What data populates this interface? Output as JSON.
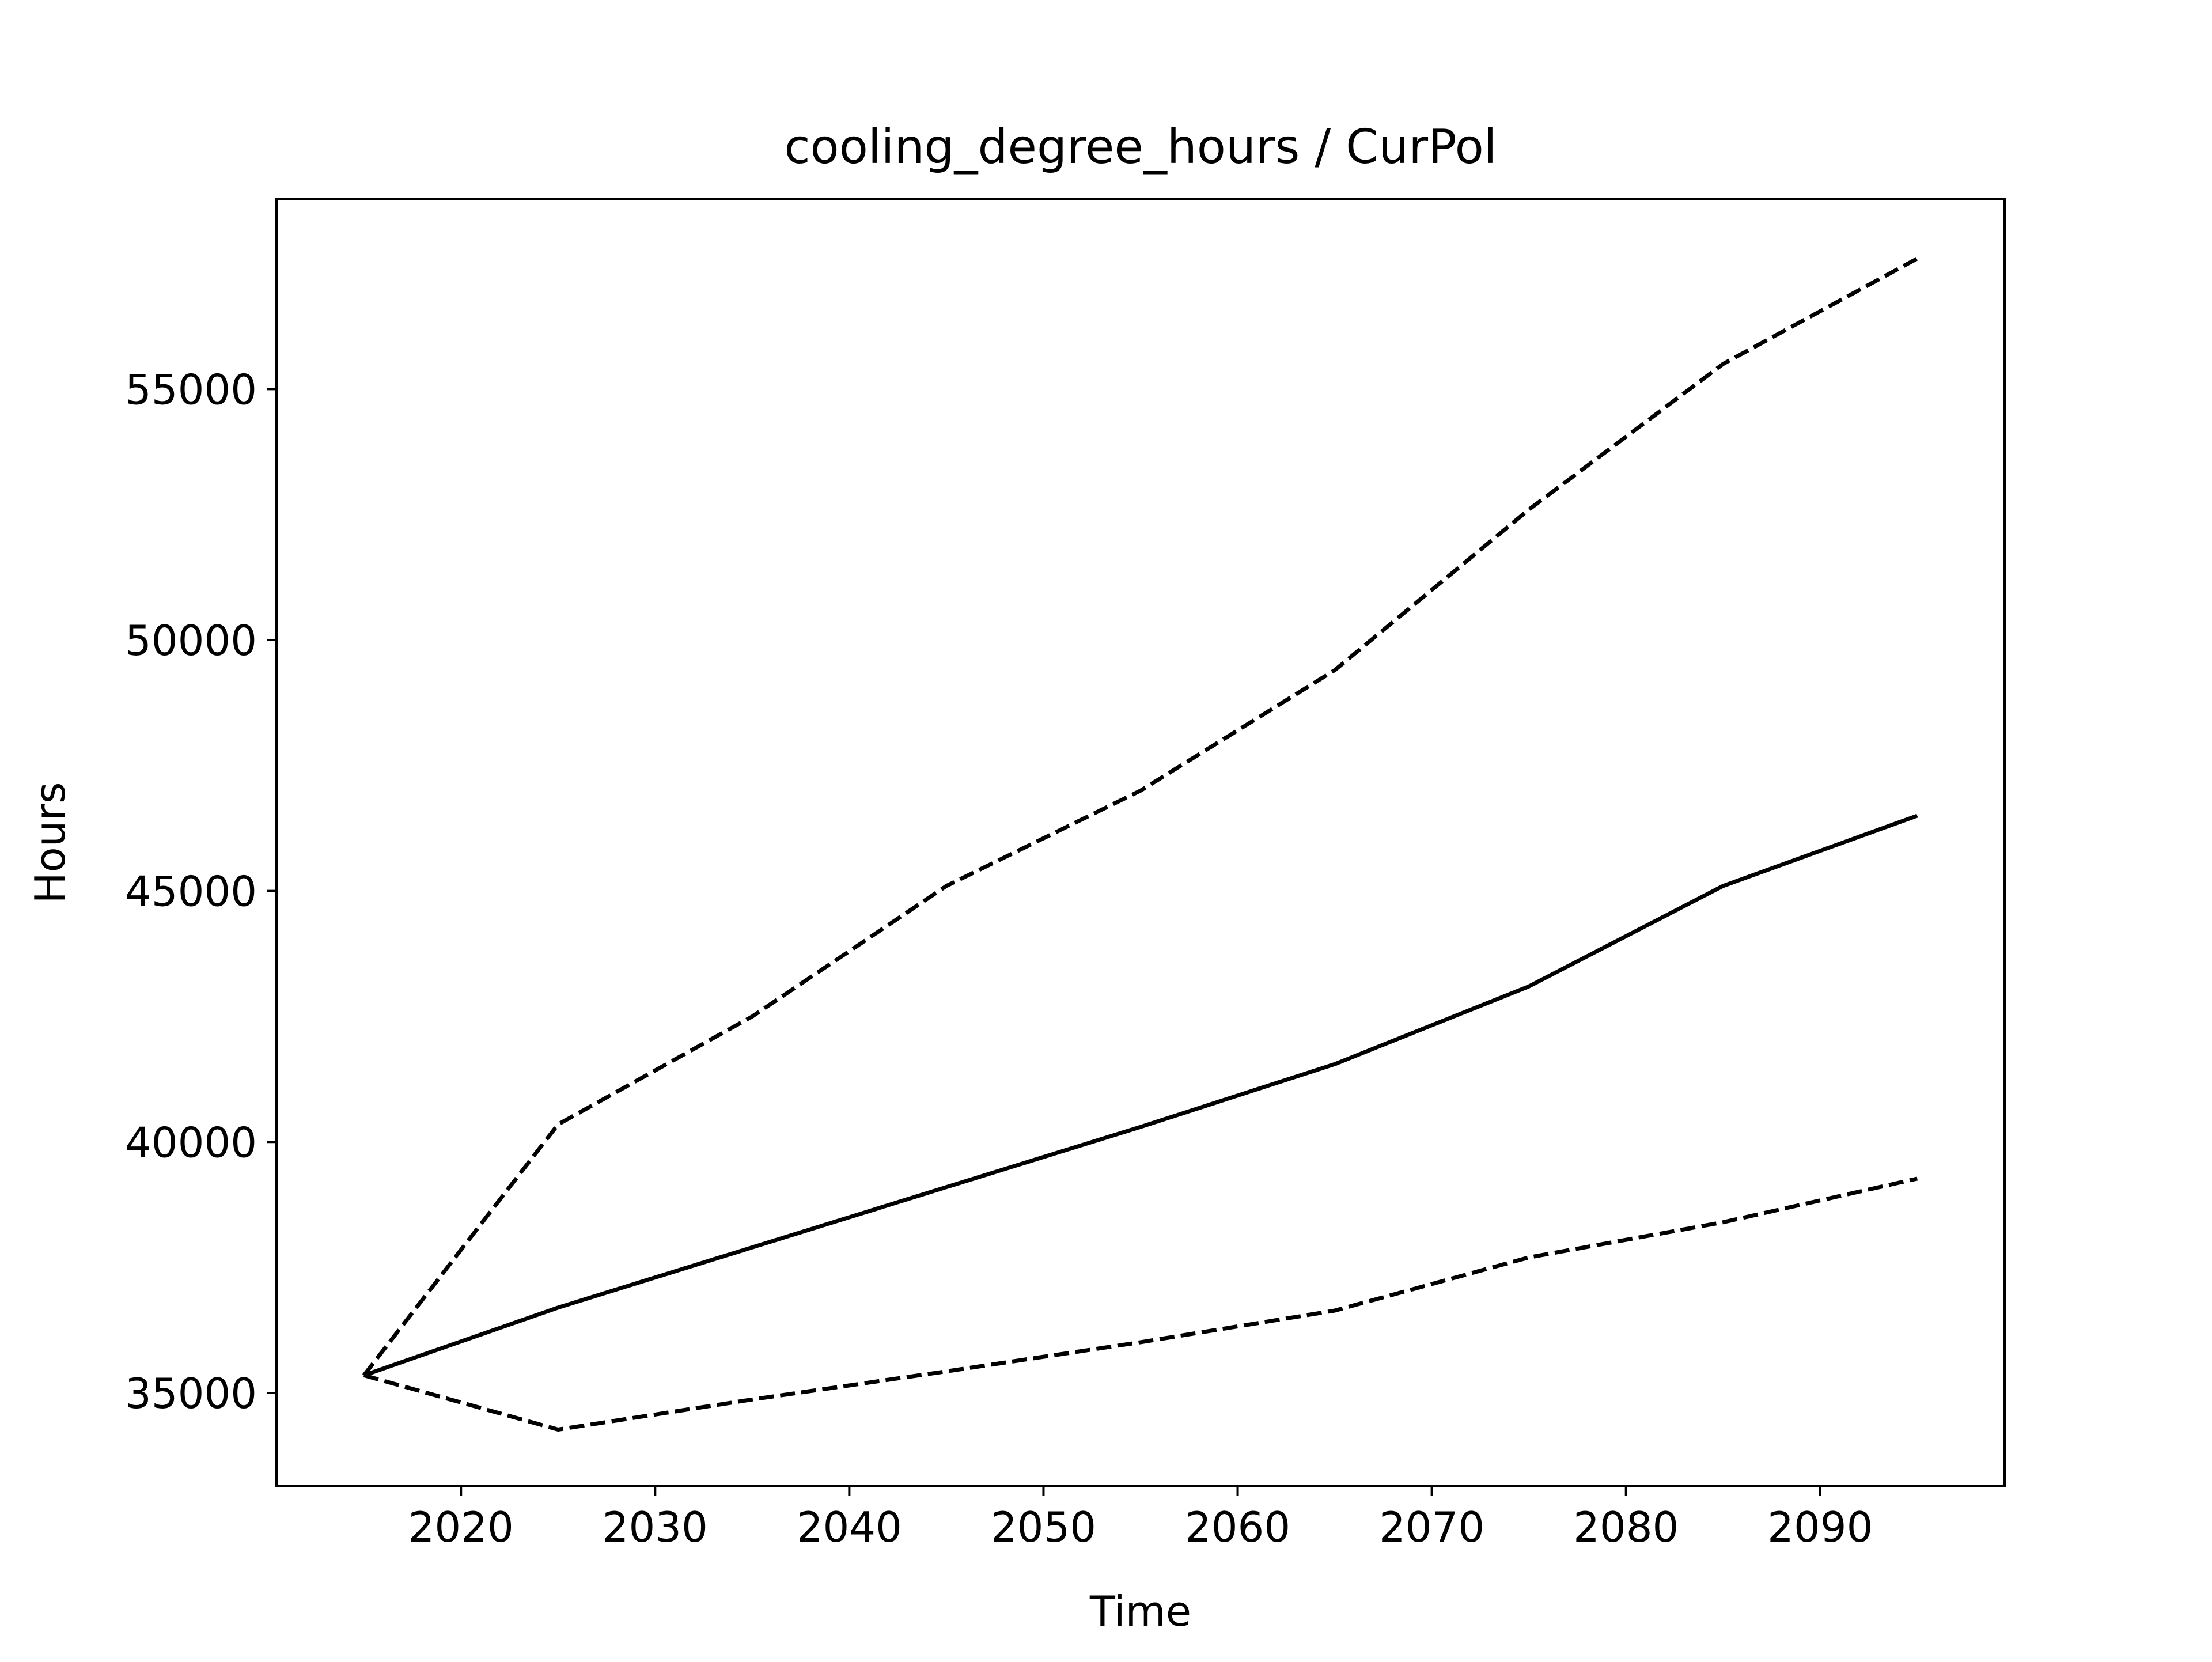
{
  "chart_data": {
    "type": "line",
    "title": "cooling_degree_hours / CurPol",
    "xlabel": "Time",
    "ylabel": "Hours",
    "xlim": [
      2010.5,
      2099.5
    ],
    "ylim": [
      33140,
      58780
    ],
    "xticks": [
      2020,
      2030,
      2040,
      2050,
      2060,
      2070,
      2080,
      2090
    ],
    "yticks": [
      35000,
      40000,
      45000,
      50000,
      55000
    ],
    "grid": false,
    "x": [
      2015,
      2025,
      2035,
      2045,
      2055,
      2065,
      2075,
      2085,
      2095
    ],
    "series": [
      {
        "style": "solid",
        "color": "#000000",
        "values": [
          35350,
          36700,
          37900,
          39100,
          40300,
          41550,
          43100,
          45100,
          46500
        ]
      },
      {
        "style": "dashed",
        "color": "#000000",
        "values": [
          35350,
          40350,
          42500,
          45100,
          47000,
          49400,
          52600,
          55500,
          57600
        ]
      },
      {
        "style": "dashed",
        "color": "#000000",
        "values": [
          35350,
          34270,
          34870,
          35430,
          36010,
          36640,
          37700,
          38400,
          39270
        ]
      }
    ]
  }
}
